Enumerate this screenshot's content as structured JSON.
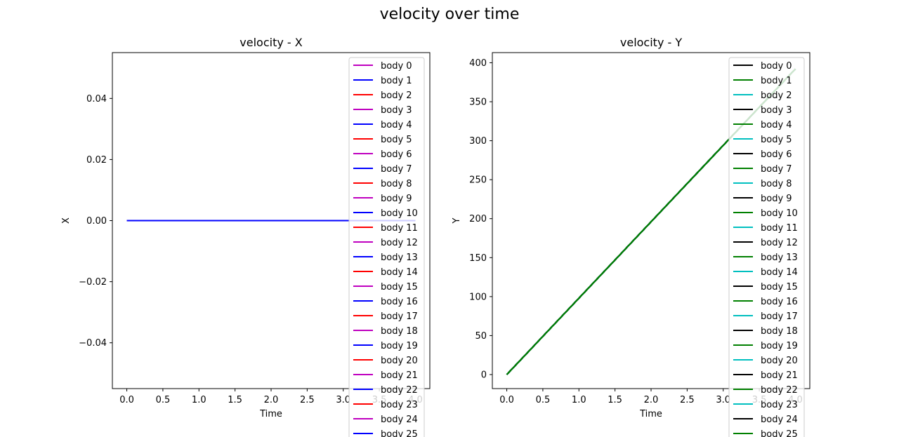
{
  "figure": {
    "suptitle": "velocity over time"
  },
  "chart_data": [
    {
      "type": "line",
      "title": "velocity - X",
      "xlabel": "Time",
      "ylabel": "X",
      "xlim": [
        -0.2,
        4.2
      ],
      "ylim": [
        -0.055,
        0.055
      ],
      "xticks": [
        0.0,
        0.5,
        1.0,
        1.5,
        2.0,
        2.5,
        3.0,
        3.5,
        4.0
      ],
      "xtick_labels": [
        "0.0",
        "0.5",
        "1.0",
        "1.5",
        "2.0",
        "2.5",
        "3.0",
        "3.5",
        "4.0"
      ],
      "yticks": [
        -0.04,
        -0.02,
        0.0,
        0.02,
        0.04
      ],
      "ytick_labels": [
        "−0.04",
        "−0.02",
        "0.00",
        "0.02",
        "0.04"
      ],
      "legend_position": "upper right",
      "grid": false,
      "color_cycle": [
        "#bf00bf",
        "#0000ff",
        "#ff0000"
      ],
      "series_labels": [
        "body 0",
        "body 1",
        "body 2",
        "body 3",
        "body 4",
        "body 5",
        "body 6",
        "body 7",
        "body 8",
        "body 9",
        "body 10",
        "body 11",
        "body 12",
        "body 13",
        "body 14",
        "body 15",
        "body 16",
        "body 17",
        "body 18",
        "body 19",
        "body 20",
        "body 21",
        "body 22",
        "body 23",
        "body 24",
        "body 25"
      ],
      "series_x": [
        0.0,
        4.0
      ],
      "series_y": [
        0.0,
        0.0
      ]
    },
    {
      "type": "line",
      "title": "velocity - Y",
      "xlabel": "Time",
      "ylabel": "Y",
      "xlim": [
        -0.2,
        4.2
      ],
      "ylim": [
        -18,
        413
      ],
      "xticks": [
        0.0,
        0.5,
        1.0,
        1.5,
        2.0,
        2.5,
        3.0,
        3.5,
        4.0
      ],
      "xtick_labels": [
        "0.0",
        "0.5",
        "1.0",
        "1.5",
        "2.0",
        "2.5",
        "3.0",
        "3.5",
        "4.0"
      ],
      "yticks": [
        0,
        50,
        100,
        150,
        200,
        250,
        300,
        350,
        400
      ],
      "ytick_labels": [
        "0",
        "50",
        "100",
        "150",
        "200",
        "250",
        "300",
        "350",
        "400"
      ],
      "legend_position": "upper right",
      "grid": false,
      "color_cycle": [
        "#000000",
        "#008000",
        "#00bfbf"
      ],
      "series_labels": [
        "body 0",
        "body 1",
        "body 2",
        "body 3",
        "body 4",
        "body 5",
        "body 6",
        "body 7",
        "body 8",
        "body 9",
        "body 10",
        "body 11",
        "body 12",
        "body 13",
        "body 14",
        "body 15",
        "body 16",
        "body 17",
        "body 18",
        "body 19",
        "body 20",
        "body 21",
        "body 22",
        "body 23",
        "body 24",
        "body 25"
      ],
      "series_x": [
        0.0,
        4.0
      ],
      "series_y": [
        0.0,
        392.0
      ]
    }
  ]
}
